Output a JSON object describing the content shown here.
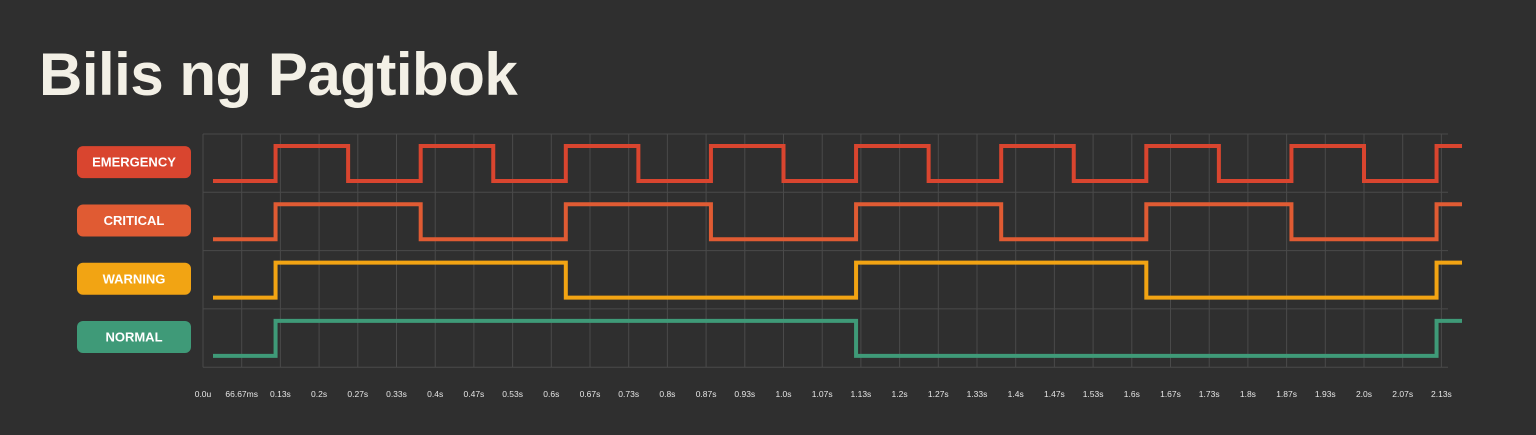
{
  "title": "Bilis ng Pagtibok",
  "chart_data": {
    "type": "line",
    "subtype": "step",
    "x_unit": "s",
    "xlim": [
      0,
      2.2
    ],
    "grid": true,
    "tick_labels": [
      "0.0u",
      "66.67ms",
      "0.13s",
      "0.2s",
      "0.27s",
      "0.33s",
      "0.4s",
      "0.47s",
      "0.53s",
      "0.6s",
      "0.67s",
      "0.73s",
      "0.8s",
      "0.87s",
      "0.93s",
      "1.0s",
      "1.07s",
      "1.13s",
      "1.2s",
      "1.27s",
      "1.33s",
      "1.4s",
      "1.47s",
      "1.53s",
      "1.6s",
      "1.67s",
      "1.73s",
      "1.8s",
      "1.87s",
      "1.93s",
      "2.0s",
      "2.07s",
      "2.13s"
    ],
    "series": [
      {
        "name": "EMERGENCY",
        "color": "#d9452f",
        "transitions": [
          0.125,
          0.25,
          0.375,
          0.5,
          0.625,
          0.75,
          0.875,
          1.0,
          1.125,
          1.25,
          1.375,
          1.5,
          1.625,
          1.75,
          1.875,
          2.0,
          2.125
        ]
      },
      {
        "name": "CRITICAL",
        "color": "#e05b33",
        "transitions": [
          0.125,
          0.375,
          0.625,
          0.875,
          1.125,
          1.375,
          1.625,
          1.875,
          2.125
        ]
      },
      {
        "name": "WARNING",
        "color": "#f2a413",
        "transitions": [
          0.125,
          0.625,
          1.125,
          1.625,
          2.125
        ]
      },
      {
        "name": "NORMAL",
        "color": "#3f9a78",
        "transitions": [
          0.125,
          1.125,
          2.125
        ]
      }
    ]
  }
}
